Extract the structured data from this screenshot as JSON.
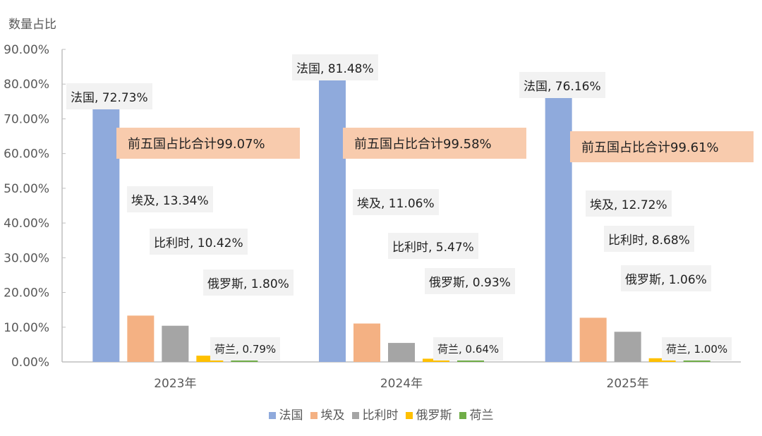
{
  "chart_data": {
    "type": "bar",
    "ylabel": "数量占比",
    "ylim": [
      0,
      90
    ],
    "yticks": [
      "0.00%",
      "10.00%",
      "20.00%",
      "30.00%",
      "40.00%",
      "50.00%",
      "60.00%",
      "70.00%",
      "80.00%",
      "90.00%"
    ],
    "categories": [
      "2023年",
      "2024年",
      "2025年"
    ],
    "grid": false,
    "legend_position": "bottom",
    "series": [
      {
        "name": "法国",
        "color": "#8faadc",
        "values": [
          72.73,
          81.48,
          76.16
        ],
        "labels": [
          "法国, 72.73%",
          "法国, 81.48%",
          "法国, 76.16%"
        ]
      },
      {
        "name": "埃及",
        "color": "#f4b183",
        "values": [
          13.34,
          11.06,
          12.72
        ],
        "labels": [
          "埃及, 13.34%",
          "埃及, 11.06%",
          "埃及, 12.72%"
        ]
      },
      {
        "name": "比利时",
        "color": "#a5a5a5",
        "values": [
          10.42,
          5.47,
          8.68
        ],
        "labels": [
          "比利时, 10.42%",
          "比利时, 5.47%",
          "比利时, 8.68%"
        ]
      },
      {
        "name": "俄罗斯",
        "color": "#ffc000",
        "values": [
          1.8,
          0.93,
          1.06
        ],
        "labels": [
          "俄罗斯, 1.80%",
          "俄罗斯, 0.93%",
          "俄罗斯, 1.06%"
        ]
      },
      {
        "name": "荷兰",
        "color": "#70ad47",
        "values": [
          0.79,
          0.64,
          1.0
        ],
        "labels": [
          "荷兰, 0.79%",
          "荷兰, 0.64%",
          "荷兰, 1.00%"
        ]
      }
    ],
    "annotations": [
      "前五国占比合计99.07%",
      "前五国占比合计99.58%",
      "前五国占比合计99.61%"
    ]
  }
}
